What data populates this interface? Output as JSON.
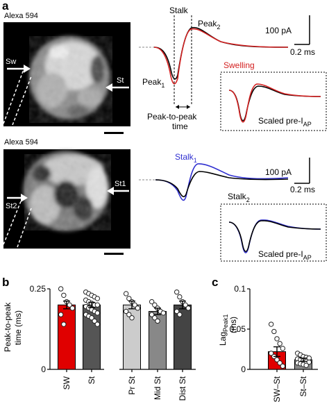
{
  "panel_a": {
    "label": "a",
    "image_top": {
      "label": "Alexa 594",
      "sw": "Sw",
      "st": "St"
    },
    "image_bottom": {
      "label": "Alexa 594",
      "st1": "St1",
      "st2": "St2"
    },
    "trace_top": {
      "stalk": "Stalk",
      "peak2": "Peak",
      "peak2_sub": "2",
      "peak1": "Peak",
      "peak1_sub": "1",
      "ptp1": "Peak-to-peak",
      "ptp2": "time",
      "scale_current": "100 pA",
      "scale_time": "0.2 ms",
      "inset_title": "Swelling",
      "inset_caption": "Scaled pre-I",
      "inset_caption_sub": "AP"
    },
    "trace_bottom": {
      "stalk1": "Stalk",
      "stalk1_sub": "1",
      "stalk2": "Stalk",
      "stalk2_sub": "2",
      "scale_current": "100 pA",
      "scale_time": "0.2 ms",
      "inset_caption": "Scaled pre-I",
      "inset_caption_sub": "AP"
    },
    "colors": {
      "swelling": "#d42020",
      "stalk": "#000000",
      "stalk1": "#2e2ed0"
    }
  },
  "panel_b": {
    "label": "b",
    "ylabel1": "Peak-to-peak",
    "ylabel2": "time (ms)",
    "chart_data": {
      "type": "bar",
      "categories": [
        "SW",
        "St",
        "Pr St",
        "Mid St",
        "Dist St"
      ],
      "values": [
        0.2,
        0.2,
        0.2,
        0.18,
        0.2
      ],
      "errors": [
        0.012,
        0.008,
        0.012,
        0.01,
        0.012
      ],
      "colors": [
        "#e00000",
        "#555555",
        "#cccccc",
        "#888888",
        "#444444"
      ],
      "ylim": [
        0,
        0.25
      ],
      "yticks": [
        "0",
        "0.25"
      ],
      "points": [
        [
          0.25,
          0.23,
          0.21,
          0.2,
          0.19,
          0.17,
          0.14
        ],
        [
          0.24,
          0.235,
          0.23,
          0.225,
          0.22,
          0.215,
          0.21,
          0.205,
          0.2,
          0.2,
          0.195,
          0.19,
          0.185,
          0.18,
          0.175,
          0.17,
          0.165,
          0.16,
          0.15,
          0.14
        ],
        [
          0.235,
          0.22,
          0.21,
          0.2,
          0.19,
          0.18,
          0.17,
          0.16
        ],
        [
          0.21,
          0.2,
          0.19,
          0.18,
          0.175,
          0.17,
          0.16,
          0.15
        ],
        [
          0.24,
          0.225,
          0.21,
          0.2,
          0.19,
          0.18,
          0.17
        ]
      ]
    }
  },
  "panel_c": {
    "label": "c",
    "ylabel_main": "Lag",
    "ylabel_sub": "Peak1",
    "ylabel_unit": "(ms)",
    "chart_data": {
      "type": "bar",
      "categories": [
        "SW–St",
        "St–St"
      ],
      "values": [
        0.022,
        0.012
      ],
      "errors": [
        0.006,
        0.002
      ],
      "colors": [
        "#e00000",
        "#888888"
      ],
      "ylim": [
        0,
        0.1
      ],
      "yticks": [
        "0",
        "0.05",
        "0.1"
      ],
      "points": [
        [
          0.056,
          0.047,
          0.038,
          0.032,
          0.026,
          0.02,
          0.016,
          0.012,
          0.008,
          0.004
        ],
        [
          0.02,
          0.018,
          0.016,
          0.015,
          0.014,
          0.013,
          0.012,
          0.011,
          0.01,
          0.009,
          0.008,
          0.007,
          0.006,
          0.005
        ]
      ]
    }
  }
}
